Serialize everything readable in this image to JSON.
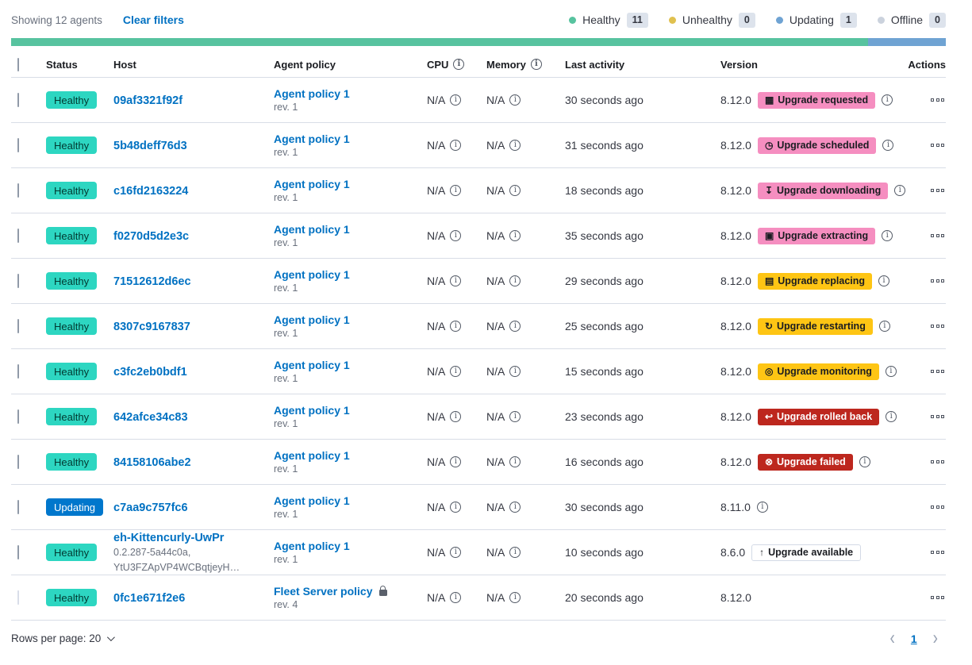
{
  "toolbar": {
    "showing": "Showing 12 agents",
    "clear_filters": "Clear filters"
  },
  "legend": {
    "items": [
      {
        "label": "Healthy",
        "count": "11",
        "color": "#57C39F"
      },
      {
        "label": "Unhealthy",
        "count": "0",
        "color": "#E0C14F"
      },
      {
        "label": "Updating",
        "count": "1",
        "color": "#6FA3D3"
      },
      {
        "label": "Offline",
        "count": "0",
        "color": "#CBD2DD"
      }
    ]
  },
  "health_bar": {
    "segments": [
      {
        "status": "healthy",
        "color": "#57C39F",
        "percent": 91.7
      },
      {
        "status": "updating",
        "color": "#6FA3D3",
        "percent": 8.3
      }
    ]
  },
  "table": {
    "headers": {
      "status": "Status",
      "host": "Host",
      "policy": "Agent policy",
      "cpu": "CPU",
      "memory": "Memory",
      "last_activity": "Last activity",
      "version": "Version",
      "actions": "Actions"
    }
  },
  "rows": [
    {
      "status": "Healthy",
      "status_color": "success",
      "host": "09af3321f92f",
      "policy": "Agent policy 1",
      "policy_rev": "rev. 1",
      "policy_locked": false,
      "cpu": "N/A",
      "memory": "N/A",
      "last_activity": "30 seconds ago",
      "version": "8.12.0",
      "upgrade_badge": {
        "label": "Upgrade requested",
        "icon": "calendar",
        "color": "pink"
      },
      "version_info": true,
      "checkbox_disabled": false
    },
    {
      "status": "Healthy",
      "status_color": "success",
      "host": "5b48deff76d3",
      "policy": "Agent policy 1",
      "policy_rev": "rev. 1",
      "policy_locked": false,
      "cpu": "N/A",
      "memory": "N/A",
      "last_activity": "31 seconds ago",
      "version": "8.12.0",
      "upgrade_badge": {
        "label": "Upgrade scheduled",
        "icon": "clock",
        "color": "pink"
      },
      "version_info": true,
      "checkbox_disabled": false
    },
    {
      "status": "Healthy",
      "status_color": "success",
      "host": "c16fd2163224",
      "policy": "Agent policy 1",
      "policy_rev": "rev. 1",
      "policy_locked": false,
      "cpu": "N/A",
      "memory": "N/A",
      "last_activity": "18 seconds ago",
      "version": "8.12.0",
      "upgrade_badge": {
        "label": "Upgrade downloading",
        "icon": "download",
        "color": "pink"
      },
      "version_info": true,
      "checkbox_disabled": false
    },
    {
      "status": "Healthy",
      "status_color": "success",
      "host": "f0270d5d2e3c",
      "policy": "Agent policy 1",
      "policy_rev": "rev. 1",
      "policy_locked": false,
      "cpu": "N/A",
      "memory": "N/A",
      "last_activity": "35 seconds ago",
      "version": "8.12.0",
      "upgrade_badge": {
        "label": "Upgrade extracting",
        "icon": "package",
        "color": "pink"
      },
      "version_info": true,
      "checkbox_disabled": false
    },
    {
      "status": "Healthy",
      "status_color": "success",
      "host": "71512612d6ec",
      "policy": "Agent policy 1",
      "policy_rev": "rev. 1",
      "policy_locked": false,
      "cpu": "N/A",
      "memory": "N/A",
      "last_activity": "29 seconds ago",
      "version": "8.12.0",
      "upgrade_badge": {
        "label": "Upgrade replacing",
        "icon": "document",
        "color": "warning"
      },
      "version_info": true,
      "checkbox_disabled": false
    },
    {
      "status": "Healthy",
      "status_color": "success",
      "host": "8307c9167837",
      "policy": "Agent policy 1",
      "policy_rev": "rev. 1",
      "policy_locked": false,
      "cpu": "N/A",
      "memory": "N/A",
      "last_activity": "25 seconds ago",
      "version": "8.12.0",
      "upgrade_badge": {
        "label": "Upgrade restarting",
        "icon": "refresh",
        "color": "warning"
      },
      "version_info": true,
      "checkbox_disabled": false
    },
    {
      "status": "Healthy",
      "status_color": "success",
      "host": "c3fc2eb0bdf1",
      "policy": "Agent policy 1",
      "policy_rev": "rev. 1",
      "policy_locked": false,
      "cpu": "N/A",
      "memory": "N/A",
      "last_activity": "15 seconds ago",
      "version": "8.12.0",
      "upgrade_badge": {
        "label": "Upgrade monitoring",
        "icon": "inspect",
        "color": "warning"
      },
      "version_info": true,
      "checkbox_disabled": false
    },
    {
      "status": "Healthy",
      "status_color": "success",
      "host": "642afce34c83",
      "policy": "Agent policy 1",
      "policy_rev": "rev. 1",
      "policy_locked": false,
      "cpu": "N/A",
      "memory": "N/A",
      "last_activity": "23 seconds ago",
      "version": "8.12.0",
      "upgrade_badge": {
        "label": "Upgrade rolled back",
        "icon": "return",
        "color": "danger"
      },
      "version_info": true,
      "checkbox_disabled": false
    },
    {
      "status": "Healthy",
      "status_color": "success",
      "host": "84158106abe2",
      "policy": "Agent policy 1",
      "policy_rev": "rev. 1",
      "policy_locked": false,
      "cpu": "N/A",
      "memory": "N/A",
      "last_activity": "16 seconds ago",
      "version": "8.12.0",
      "upgrade_badge": {
        "label": "Upgrade failed",
        "icon": "error",
        "color": "danger"
      },
      "version_info": true,
      "checkbox_disabled": false
    },
    {
      "status": "Updating",
      "status_color": "primary",
      "host": "c7aa9c757fc6",
      "policy": "Agent policy 1",
      "policy_rev": "rev. 1",
      "policy_locked": false,
      "cpu": "N/A",
      "memory": "N/A",
      "last_activity": "30 seconds ago",
      "version": "8.11.0",
      "upgrade_badge": null,
      "version_info": true,
      "checkbox_disabled": false
    },
    {
      "status": "Healthy",
      "status_color": "success",
      "host": "eh-Kittencurly-UwPr",
      "host_sub": [
        "0.2.287-5a44c0a,",
        "YtU3FZApVP4WCBqtjeyH…"
      ],
      "policy": "Agent policy 1",
      "policy_rev": "rev. 1",
      "policy_locked": false,
      "cpu": "N/A",
      "memory": "N/A",
      "last_activity": "10 seconds ago",
      "version": "8.6.0",
      "upgrade_badge": {
        "label": "Upgrade available",
        "icon": "arrow-up",
        "color": "hollow"
      },
      "version_info": false,
      "checkbox_disabled": false
    },
    {
      "status": "Healthy",
      "status_color": "success",
      "host": "0fc1e671f2e6",
      "policy": "Fleet Server policy",
      "policy_rev": "rev. 4",
      "policy_locked": true,
      "cpu": "N/A",
      "memory": "N/A",
      "last_activity": "20 seconds ago",
      "version": "8.12.0",
      "upgrade_badge": null,
      "version_info": false,
      "checkbox_disabled": true
    }
  ],
  "footer": {
    "rows_per_page": "Rows per page: 20",
    "page": "1",
    "prev_arrow": "‹",
    "next_arrow": "›"
  }
}
